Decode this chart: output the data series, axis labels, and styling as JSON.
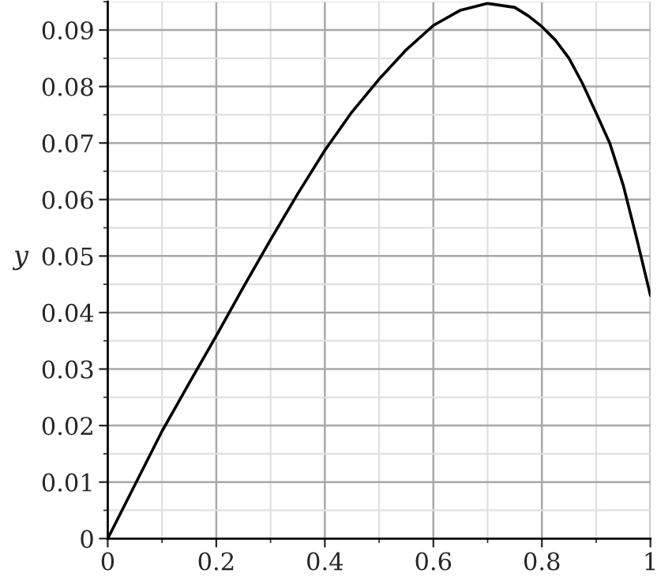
{
  "chart_data": {
    "type": "line",
    "ylabel": "y",
    "x": [
      0,
      0.05,
      0.1,
      0.15,
      0.2,
      0.25,
      0.3,
      0.35,
      0.4,
      0.45,
      0.5,
      0.55,
      0.6,
      0.65,
      0.7,
      0.75,
      0.775,
      0.8,
      0.825,
      0.85,
      0.875,
      0.9,
      0.925,
      0.95,
      0.975,
      1
    ],
    "series": [
      {
        "color": "#000000",
        "values": [
          0,
          0.0095,
          0.019,
          0.0275,
          0.0359,
          0.0445,
          0.0529,
          0.061,
          0.0687,
          0.0755,
          0.0813,
          0.0865,
          0.0908,
          0.0935,
          0.0947,
          0.094,
          0.0925,
          0.0906,
          0.0882,
          0.085,
          0.0805,
          0.0753,
          0.07,
          0.0625,
          0.053,
          0.043
        ]
      }
    ],
    "xlim": [
      0,
      1
    ],
    "ylim": [
      0,
      0.095
    ],
    "xticks": [
      0,
      0.2,
      0.4,
      0.6,
      0.8,
      1
    ],
    "yticks": [
      0,
      0.01,
      0.02,
      0.03,
      0.04,
      0.05,
      0.06,
      0.07,
      0.08,
      0.09
    ],
    "grid": true,
    "legend": false,
    "line_style": "solid",
    "marker": "none"
  }
}
